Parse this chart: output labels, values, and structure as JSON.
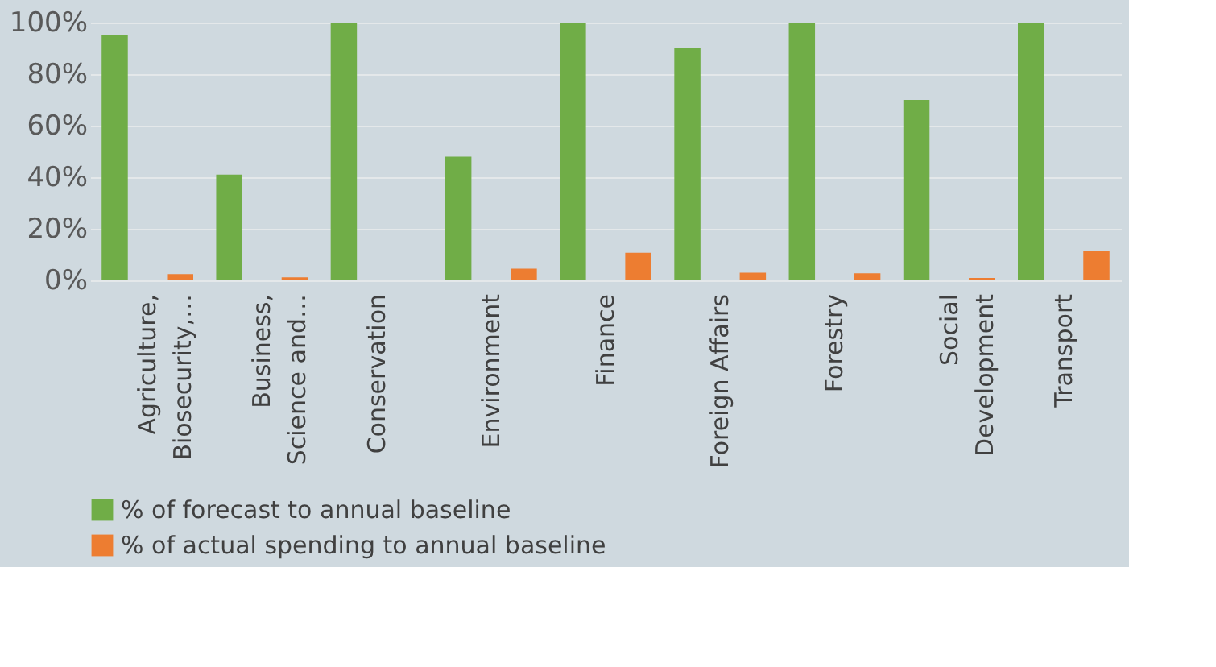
{
  "chart_data": {
    "type": "bar",
    "categories": [
      "Agriculture,\nBiosecurity,…",
      "Business,\nScience and…",
      "Conservation",
      "Environment",
      "Finance",
      "Foreign Affairs",
      "Forestry",
      "Social\nDevelopment",
      "Transport"
    ],
    "series": [
      {
        "name": "% of forecast to annual baseline",
        "color": "#70ad47",
        "values": [
          95,
          41,
          100,
          48,
          100,
          90,
          100,
          70,
          100
        ]
      },
      {
        "name": "% of actual spending to annual baseline",
        "color": "#ed7d31",
        "values": [
          2.4,
          1.2,
          0,
          4.5,
          10.7,
          3,
          2.7,
          0.9,
          11.6
        ]
      }
    ],
    "ylim": [
      0,
      100
    ],
    "yticks": [
      {
        "value": 0,
        "label": "0%"
      },
      {
        "value": 20,
        "label": "20%"
      },
      {
        "value": 40,
        "label": "40%"
      },
      {
        "value": 60,
        "label": "60%"
      },
      {
        "value": 80,
        "label": "80%"
      },
      {
        "value": 100,
        "label": "100%"
      }
    ],
    "grid": "y",
    "legend": "bottom"
  }
}
